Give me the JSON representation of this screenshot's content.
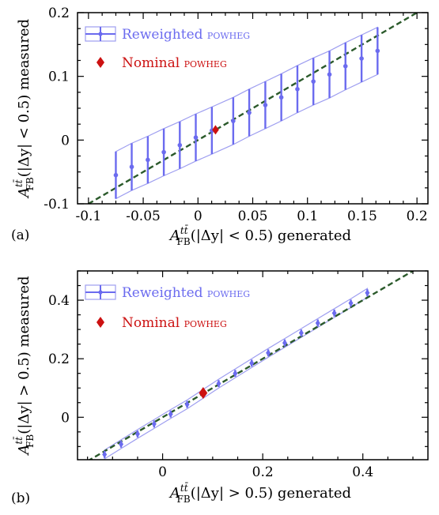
{
  "chart_data": [
    {
      "type": "scatter",
      "panel_label": "(a)",
      "xlabel": "A_FB^tt̄(|Δy| < 0.5) generated",
      "xlabel_parts": {
        "sym": "A",
        "sub": "FB",
        "sup": "tt̄",
        "rest": "(|Δy| < 0.5) generated"
      },
      "ylabel": "A_FB^tt̄(|Δy| < 0.5) measured",
      "ylabel_parts": {
        "sym": "A",
        "sub": "FB",
        "sup": "tt̄",
        "rest": "(|Δy| < 0.5) measured"
      },
      "xlim": [
        -0.11,
        0.21
      ],
      "ylim": [
        -0.1,
        0.2
      ],
      "xticks": [
        -0.1,
        -0.05,
        0,
        0.05,
        0.1,
        0.15,
        0.2
      ],
      "xtick_labels": [
        "-0.1",
        "-0.05",
        "0",
        "0.05",
        "0.1",
        "0.15",
        "0.2"
      ],
      "yticks": [
        -0.1,
        0,
        0.1,
        0.2
      ],
      "ytick_labels": [
        "-0.1",
        "0",
        "0.1",
        "0.2"
      ],
      "legend": {
        "position": "top-left",
        "entries": [
          "Reweighted POWHEG",
          "Nominal POWHEG"
        ]
      },
      "series": [
        {
          "name": "Reweighted POWHEG",
          "x": [
            -0.075,
            -0.0605,
            -0.0458,
            -0.0312,
            -0.0166,
            -0.002,
            0.0127,
            0.0322,
            0.0468,
            0.0615,
            0.0761,
            0.0908,
            0.1054,
            0.1201,
            0.1347,
            0.1494,
            0.164
          ],
          "y": [
            -0.055,
            -0.042,
            -0.031,
            -0.019,
            -0.008,
            0.004,
            0.015,
            0.03,
            0.043,
            0.055,
            0.067,
            0.08,
            0.092,
            0.103,
            0.116,
            0.128,
            0.14
          ],
          "yerr": [
            0.037,
            0.037,
            0.037,
            0.037,
            0.037,
            0.037,
            0.037,
            0.037,
            0.037,
            0.037,
            0.037,
            0.037,
            0.037,
            0.037,
            0.037,
            0.037,
            0.037
          ],
          "band_low": [
            -0.092,
            -0.079,
            -0.068,
            -0.056,
            -0.045,
            -0.033,
            -0.022,
            -0.007,
            0.006,
            0.018,
            0.03,
            0.043,
            0.055,
            0.066,
            0.079,
            0.091,
            0.103
          ],
          "band_high": [
            -0.018,
            -0.005,
            0.006,
            0.018,
            0.029,
            0.041,
            0.052,
            0.067,
            0.08,
            0.092,
            0.104,
            0.117,
            0.129,
            0.14,
            0.153,
            0.165,
            0.177
          ]
        },
        {
          "name": "Nominal POWHEG",
          "x": [
            0.016
          ],
          "y": [
            0.016
          ]
        }
      ],
      "reference_line": "y = x"
    },
    {
      "type": "scatter",
      "panel_label": "(b)",
      "xlabel": "A_FB^tt̄(|Δy| > 0.5) generated",
      "xlabel_parts": {
        "sym": "A",
        "sub": "FB",
        "sup": "tt̄",
        "rest": "(|Δy| > 0.5) generated"
      },
      "ylabel": "A_FB^tt̄(|Δy| > 0.5) measured",
      "ylabel_parts": {
        "sym": "A",
        "sub": "FB",
        "sup": "tt̄",
        "rest": "(|Δy| > 0.5) measured"
      },
      "xlim": [
        -0.17,
        0.53
      ],
      "ylim": [
        -0.145,
        0.5
      ],
      "xticks": [
        0,
        0.2,
        0.4
      ],
      "xtick_labels": [
        "0",
        "0.2",
        "0.4"
      ],
      "yticks": [
        0,
        0.2,
        0.4
      ],
      "ytick_labels": [
        "0",
        "0.2",
        "0.4"
      ],
      "legend": {
        "position": "top-left",
        "entries": [
          "Reweighted POWHEG",
          "Nominal POWHEG"
        ]
      },
      "series": [
        {
          "name": "Reweighted POWHEG",
          "x": [
            -0.116,
            -0.083,
            -0.05,
            -0.017,
            0.016,
            0.049,
            0.112,
            0.145,
            0.178,
            0.211,
            0.244,
            0.277,
            0.31,
            0.343,
            0.376,
            0.409
          ],
          "y": [
            -0.127,
            -0.092,
            -0.057,
            -0.023,
            0.011,
            0.044,
            0.115,
            0.15,
            0.185,
            0.22,
            0.254,
            0.288,
            0.322,
            0.356,
            0.39,
            0.425
          ],
          "yerr": [
            0.012,
            0.012,
            0.012,
            0.012,
            0.012,
            0.012,
            0.012,
            0.012,
            0.012,
            0.012,
            0.012,
            0.012,
            0.012,
            0.012,
            0.012,
            0.012
          ],
          "band_low": [
            -0.142,
            -0.107,
            -0.072,
            -0.038,
            -0.004,
            0.029,
            0.1,
            0.135,
            0.17,
            0.205,
            0.239,
            0.273,
            0.307,
            0.341,
            0.375,
            0.41
          ],
          "band_high": [
            -0.112,
            -0.077,
            -0.042,
            -0.008,
            0.026,
            0.059,
            0.13,
            0.165,
            0.2,
            0.235,
            0.269,
            0.303,
            0.337,
            0.371,
            0.405,
            0.44
          ]
        },
        {
          "name": "Nominal POWHEG",
          "x": [
            0.081
          ],
          "y": [
            0.083
          ]
        }
      ],
      "reference_line": "y = x"
    }
  ],
  "colors": {
    "reweighted": "#6b6bef",
    "band": "#9e9ef0",
    "nominal": "#cc1111",
    "diagonal": "#2b5a2b",
    "axis": "#000000"
  }
}
